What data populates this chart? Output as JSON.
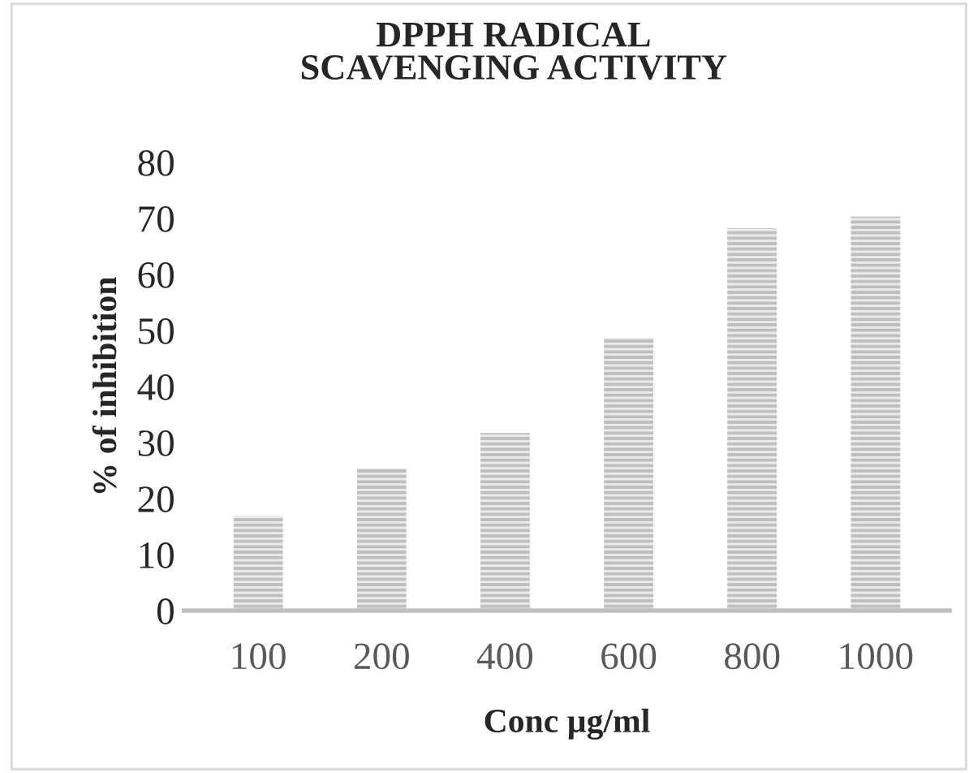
{
  "chart_data": {
    "type": "bar",
    "title": "DPPH RADICAL\nSCAVENGING ACTIVITY",
    "xlabel": "Conc µg/ml",
    "ylabel": "% of inhibition",
    "categories": [
      "100",
      "200",
      "400",
      "600",
      "800",
      "1000"
    ],
    "values": [
      16.9,
      25.4,
      31.7,
      48.7,
      68.2,
      70.3
    ],
    "color": "#bfbfbf",
    "ylim": [
      0,
      80
    ],
    "yticks": [
      0,
      10,
      20,
      30,
      40,
      50,
      60,
      70,
      80
    ],
    "grid": false,
    "legend": false
  }
}
